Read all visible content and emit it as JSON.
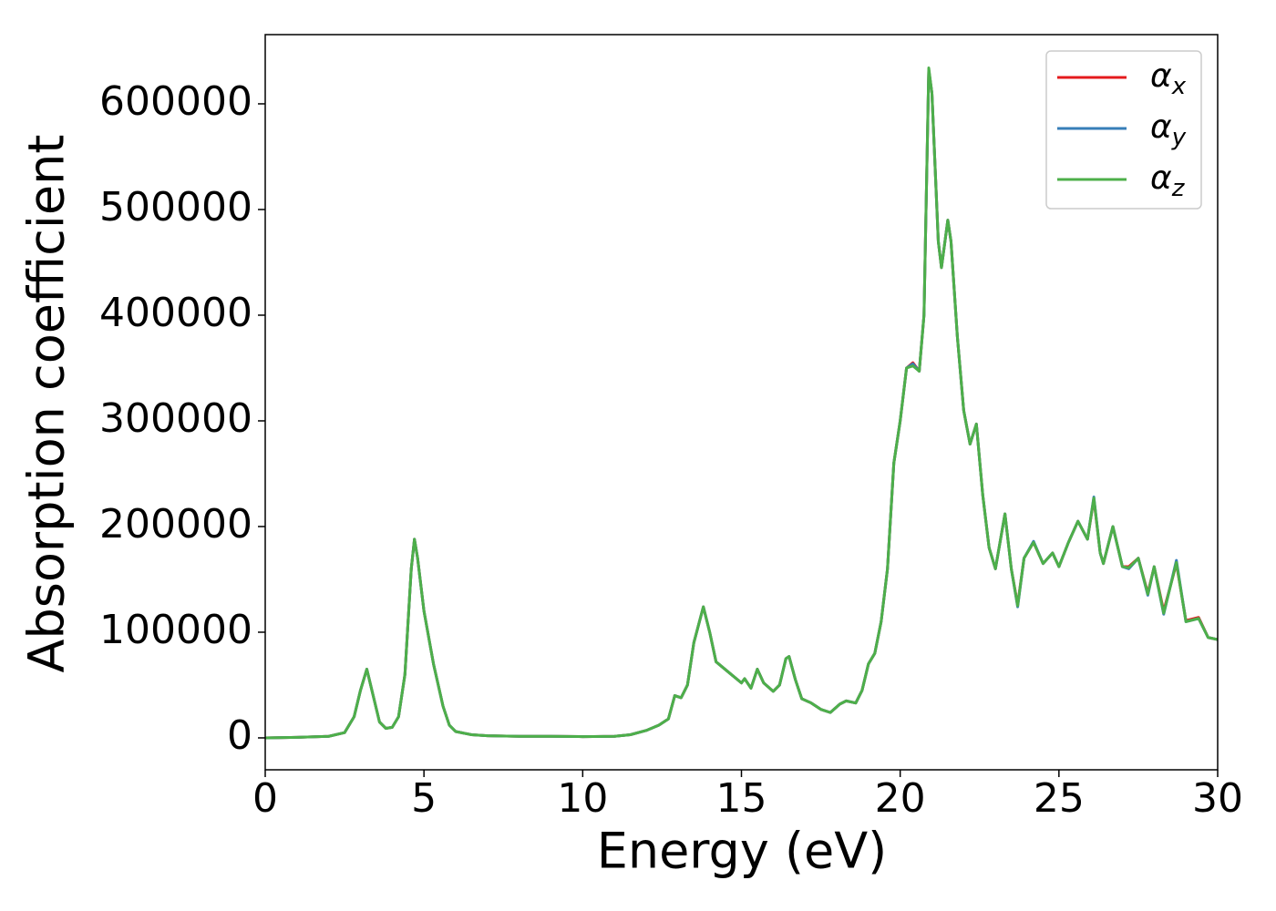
{
  "chart_data": {
    "type": "line",
    "xlabel": "Energy (eV)",
    "ylabel": "Absorption coefficient",
    "x": [
      0,
      1,
      2,
      2.5,
      2.8,
      3.0,
      3.2,
      3.4,
      3.6,
      3.8,
      4.0,
      4.2,
      4.4,
      4.6,
      4.7,
      4.8,
      5.0,
      5.3,
      5.6,
      5.8,
      6.0,
      6.5,
      7,
      8,
      9,
      10,
      11,
      11.5,
      12,
      12.4,
      12.7,
      12.9,
      13.1,
      13.3,
      13.5,
      13.8,
      14.0,
      14.2,
      14.6,
      15.0,
      15.1,
      15.3,
      15.5,
      15.7,
      16.0,
      16.2,
      16.4,
      16.5,
      16.7,
      16.9,
      17.2,
      17.5,
      17.8,
      18.1,
      18.3,
      18.6,
      18.8,
      19.0,
      19.2,
      19.4,
      19.6,
      19.8,
      20.0,
      20.2,
      20.4,
      20.6,
      20.75,
      20.9,
      21.0,
      21.2,
      21.3,
      21.5,
      21.6,
      21.8,
      22.0,
      22.2,
      22.4,
      22.6,
      22.8,
      23.0,
      23.3,
      23.5,
      23.7,
      23.9,
      24.2,
      24.5,
      24.8,
      25.0,
      25.3,
      25.6,
      25.9,
      26.1,
      26.3,
      26.4,
      26.7,
      27.0,
      27.2,
      27.5,
      27.8,
      28.0,
      28.3,
      28.7,
      29.0,
      29.4,
      29.7,
      30
    ],
    "series": [
      {
        "name": "αx",
        "color": "#e41a1c",
        "values": [
          0,
          500,
          1500,
          5000,
          20000,
          45000,
          65000,
          40000,
          15000,
          9000,
          10000,
          20000,
          60000,
          160000,
          188000,
          170000,
          120000,
          70000,
          30000,
          12000,
          6000,
          3000,
          2000,
          1500,
          1500,
          1200,
          1500,
          3000,
          7000,
          12000,
          18000,
          40000,
          38000,
          50000,
          90000,
          124000,
          100000,
          72000,
          62000,
          52000,
          56000,
          47000,
          65000,
          52000,
          44000,
          50000,
          75000,
          77000,
          55000,
          37000,
          33000,
          27000,
          24000,
          32000,
          35000,
          33000,
          45000,
          70000,
          80000,
          110000,
          160000,
          260000,
          300000,
          350000,
          355000,
          347000,
          400000,
          632000,
          610000,
          470000,
          445000,
          490000,
          470000,
          380000,
          310000,
          278000,
          297000,
          230000,
          180000,
          160000,
          212000,
          160000,
          126000,
          170000,
          185000,
          165000,
          175000,
          162000,
          185000,
          205000,
          188000,
          226000,
          175000,
          165000,
          200000,
          162000,
          162000,
          170000,
          137000,
          162000,
          120000,
          165000,
          111000,
          114000,
          95000,
          93000
        ]
      },
      {
        "name": "αy",
        "color": "#377eb8",
        "values": [
          0,
          500,
          1500,
          5000,
          20000,
          45000,
          65000,
          40000,
          15000,
          9000,
          10000,
          20000,
          60000,
          160000,
          188000,
          170000,
          120000,
          70000,
          30000,
          12000,
          6000,
          3000,
          2000,
          1500,
          1500,
          1200,
          1500,
          3000,
          7000,
          12000,
          18000,
          40000,
          38000,
          50000,
          90000,
          124000,
          100000,
          72000,
          62000,
          52000,
          56000,
          47000,
          65000,
          52000,
          44000,
          50000,
          75000,
          77000,
          55000,
          37000,
          33000,
          27000,
          24000,
          32000,
          35000,
          33000,
          45000,
          70000,
          80000,
          110000,
          160000,
          260000,
          300000,
          350000,
          354000,
          347000,
          400000,
          632000,
          610000,
          470000,
          445000,
          490000,
          470000,
          380000,
          310000,
          278000,
          297000,
          230000,
          180000,
          160000,
          212000,
          160000,
          124000,
          170000,
          186000,
          165000,
          175000,
          162000,
          185000,
          205000,
          188000,
          228000,
          175000,
          165000,
          200000,
          162000,
          160000,
          170000,
          135000,
          162000,
          117000,
          168000,
          110000,
          113000,
          95000,
          93000
        ]
      },
      {
        "name": "αz",
        "color": "#4daf4a",
        "values": [
          0,
          500,
          1500,
          5000,
          20000,
          45000,
          65000,
          40000,
          15000,
          9000,
          10000,
          20000,
          60000,
          160000,
          188000,
          170000,
          120000,
          70000,
          30000,
          12000,
          6000,
          3000,
          2000,
          1500,
          1500,
          1200,
          1500,
          3000,
          7000,
          12000,
          18000,
          40000,
          38000,
          50000,
          90000,
          124000,
          100000,
          72000,
          62000,
          52000,
          56000,
          47000,
          65000,
          52000,
          44000,
          50000,
          75000,
          77000,
          55000,
          37000,
          33000,
          27000,
          24000,
          32000,
          35000,
          33000,
          45000,
          70000,
          80000,
          110000,
          160000,
          260000,
          300000,
          350000,
          352000,
          347000,
          400000,
          634000,
          610000,
          470000,
          445000,
          490000,
          470000,
          380000,
          310000,
          278000,
          297000,
          230000,
          180000,
          160000,
          212000,
          160000,
          125000,
          170000,
          185000,
          165000,
          175000,
          162000,
          185000,
          205000,
          188000,
          227000,
          175000,
          165000,
          200000,
          162000,
          161000,
          170000,
          136000,
          162000,
          118000,
          166000,
          110000,
          113000,
          95000,
          93000
        ]
      }
    ],
    "xlim": [
      0,
      30
    ],
    "xticks": [
      0,
      5,
      10,
      15,
      20,
      25,
      30
    ],
    "ylim": [
      -30200,
      665500
    ],
    "yticks": [
      0,
      100000,
      200000,
      300000,
      400000,
      500000,
      600000
    ],
    "grid": false,
    "legend": "upper right"
  }
}
